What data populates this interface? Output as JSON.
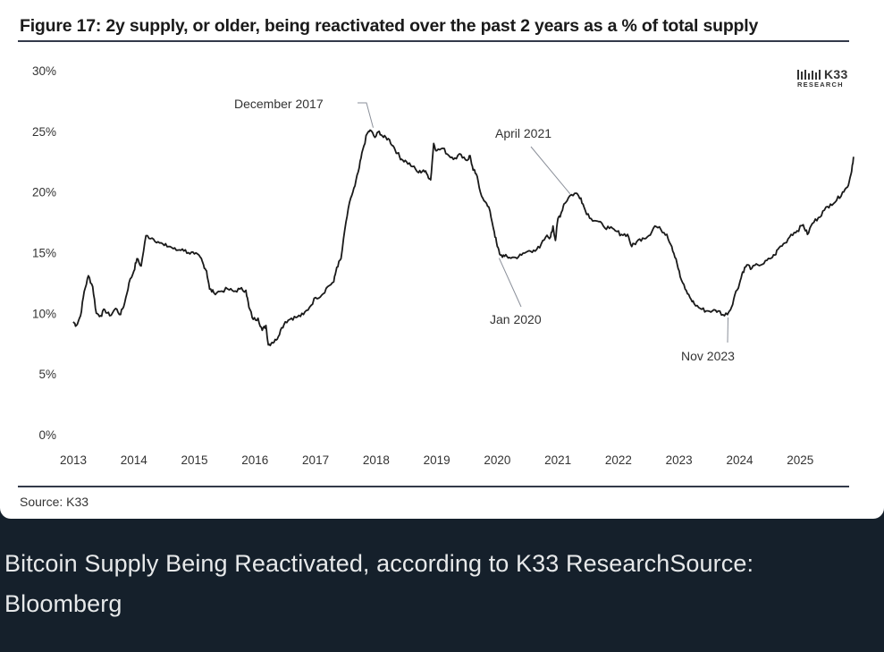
{
  "card": {
    "source": "Source: K33",
    "logo": {
      "name": "K33",
      "subtitle": "RESEARCH"
    }
  },
  "caption": "Bitcoin Supply Being Reactivated, according to K33 ResearchSource: Bloomberg",
  "colors": {
    "line": "#1a1a1a",
    "page_bg": "#15202b",
    "card_bg": "#ffffff",
    "caption_text": "#e7e9ea"
  },
  "chart_data": {
    "type": "line",
    "title": "Figure 17: 2y supply, or older, being reactivated over the past 2 years as a % of total supply",
    "xlabel": "",
    "ylabel": "",
    "xlim": [
      2013.0,
      2026.0
    ],
    "ylim": [
      0,
      30
    ],
    "x_ticks": [
      2013,
      2014,
      2015,
      2016,
      2017,
      2018,
      2019,
      2020,
      2021,
      2022,
      2023,
      2024,
      2025
    ],
    "y_ticks": [
      {
        "value": 0,
        "label": "0%"
      },
      {
        "value": 5,
        "label": "5%"
      },
      {
        "value": 10,
        "label": "10%"
      },
      {
        "value": 15,
        "label": "15%"
      },
      {
        "value": 20,
        "label": "20%"
      },
      {
        "value": 25,
        "label": "25%"
      },
      {
        "value": 30,
        "label": "30%"
      }
    ],
    "grid": false,
    "series": [
      {
        "name": "2y+ supply reactivated (% of total supply)",
        "points": [
          [
            2013.0,
            9.3
          ],
          [
            2013.05,
            9.0
          ],
          [
            2013.12,
            9.8
          ],
          [
            2013.18,
            11.8
          ],
          [
            2013.25,
            13.1
          ],
          [
            2013.32,
            12.2
          ],
          [
            2013.38,
            10.0
          ],
          [
            2013.45,
            9.8
          ],
          [
            2013.52,
            10.3
          ],
          [
            2013.6,
            9.8
          ],
          [
            2013.7,
            10.4
          ],
          [
            2013.78,
            9.9
          ],
          [
            2013.85,
            10.9
          ],
          [
            2013.92,
            12.5
          ],
          [
            2014.0,
            13.5
          ],
          [
            2014.05,
            14.5
          ],
          [
            2014.12,
            13.9
          ],
          [
            2014.2,
            16.4
          ],
          [
            2014.3,
            16.2
          ],
          [
            2014.4,
            15.9
          ],
          [
            2014.5,
            15.6
          ],
          [
            2014.6,
            15.5
          ],
          [
            2014.7,
            15.2
          ],
          [
            2014.8,
            15.3
          ],
          [
            2014.9,
            15.0
          ],
          [
            2015.0,
            14.9
          ],
          [
            2015.1,
            14.6
          ],
          [
            2015.15,
            14.0
          ],
          [
            2015.2,
            13.5
          ],
          [
            2015.25,
            12.0
          ],
          [
            2015.32,
            11.7
          ],
          [
            2015.42,
            11.8
          ],
          [
            2015.55,
            12.0
          ],
          [
            2015.65,
            11.8
          ],
          [
            2015.75,
            12.0
          ],
          [
            2015.85,
            11.9
          ],
          [
            2015.9,
            10.5
          ],
          [
            2015.97,
            9.5
          ],
          [
            2016.05,
            9.6
          ],
          [
            2016.12,
            8.6
          ],
          [
            2016.18,
            9.0
          ],
          [
            2016.22,
            7.4
          ],
          [
            2016.28,
            7.6
          ],
          [
            2016.35,
            7.8
          ],
          [
            2016.42,
            8.6
          ],
          [
            2016.5,
            9.3
          ],
          [
            2016.6,
            9.6
          ],
          [
            2016.7,
            9.7
          ],
          [
            2016.8,
            9.9
          ],
          [
            2016.9,
            10.5
          ],
          [
            2017.0,
            11.3
          ],
          [
            2017.1,
            11.5
          ],
          [
            2017.2,
            12.2
          ],
          [
            2017.3,
            12.6
          ],
          [
            2017.35,
            13.8
          ],
          [
            2017.42,
            14.5
          ],
          [
            2017.5,
            17.5
          ],
          [
            2017.58,
            19.5
          ],
          [
            2017.65,
            20.5
          ],
          [
            2017.72,
            22.0
          ],
          [
            2017.78,
            23.5
          ],
          [
            2017.85,
            24.8
          ],
          [
            2017.9,
            25.1
          ],
          [
            2017.98,
            24.5
          ],
          [
            2018.05,
            25.0
          ],
          [
            2018.12,
            24.5
          ],
          [
            2018.2,
            24.4
          ],
          [
            2018.28,
            23.8
          ],
          [
            2018.35,
            23.2
          ],
          [
            2018.42,
            22.7
          ],
          [
            2018.5,
            22.5
          ],
          [
            2018.6,
            22.1
          ],
          [
            2018.7,
            21.6
          ],
          [
            2018.78,
            21.8
          ],
          [
            2018.85,
            21.4
          ],
          [
            2018.9,
            21.0
          ],
          [
            2018.95,
            24.0
          ],
          [
            2019.0,
            23.4
          ],
          [
            2019.1,
            23.6
          ],
          [
            2019.2,
            23.0
          ],
          [
            2019.3,
            22.8
          ],
          [
            2019.4,
            23.1
          ],
          [
            2019.5,
            22.6
          ],
          [
            2019.55,
            23.0
          ],
          [
            2019.6,
            21.8
          ],
          [
            2019.65,
            21.5
          ],
          [
            2019.72,
            20.0
          ],
          [
            2019.8,
            19.2
          ],
          [
            2019.88,
            18.4
          ],
          [
            2019.95,
            16.7
          ],
          [
            2020.0,
            15.5
          ],
          [
            2020.05,
            14.8
          ],
          [
            2020.12,
            14.7
          ],
          [
            2020.2,
            14.6
          ],
          [
            2020.3,
            14.6
          ],
          [
            2020.4,
            14.8
          ],
          [
            2020.5,
            15.1
          ],
          [
            2020.6,
            15.2
          ],
          [
            2020.7,
            15.4
          ],
          [
            2020.8,
            16.3
          ],
          [
            2020.88,
            16.3
          ],
          [
            2020.92,
            17.2
          ],
          [
            2020.96,
            16.0
          ],
          [
            2021.0,
            17.8
          ],
          [
            2021.05,
            18.2
          ],
          [
            2021.1,
            19.0
          ],
          [
            2021.2,
            19.7
          ],
          [
            2021.3,
            19.9
          ],
          [
            2021.38,
            19.5
          ],
          [
            2021.45,
            18.5
          ],
          [
            2021.55,
            17.8
          ],
          [
            2021.65,
            17.6
          ],
          [
            2021.75,
            17.2
          ],
          [
            2021.85,
            17.0
          ],
          [
            2021.95,
            16.8
          ],
          [
            2022.05,
            16.5
          ],
          [
            2022.15,
            16.5
          ],
          [
            2022.22,
            15.5
          ],
          [
            2022.3,
            15.9
          ],
          [
            2022.4,
            16.2
          ],
          [
            2022.5,
            16.4
          ],
          [
            2022.6,
            17.2
          ],
          [
            2022.7,
            16.9
          ],
          [
            2022.8,
            16.5
          ],
          [
            2022.88,
            15.5
          ],
          [
            2022.95,
            14.5
          ],
          [
            2023.02,
            13.0
          ],
          [
            2023.1,
            12.0
          ],
          [
            2023.18,
            11.3
          ],
          [
            2023.25,
            10.8
          ],
          [
            2023.35,
            10.4
          ],
          [
            2023.45,
            10.2
          ],
          [
            2023.55,
            10.2
          ],
          [
            2023.65,
            10.2
          ],
          [
            2023.75,
            9.8
          ],
          [
            2023.85,
            10.3
          ],
          [
            2023.92,
            11.5
          ],
          [
            2024.0,
            12.5
          ],
          [
            2024.05,
            13.4
          ],
          [
            2024.12,
            14.0
          ],
          [
            2024.2,
            13.7
          ],
          [
            2024.3,
            14.0
          ],
          [
            2024.4,
            14.1
          ],
          [
            2024.5,
            14.5
          ],
          [
            2024.58,
            14.8
          ],
          [
            2024.65,
            15.4
          ],
          [
            2024.75,
            15.8
          ],
          [
            2024.85,
            16.5
          ],
          [
            2024.95,
            16.8
          ],
          [
            2025.05,
            17.3
          ],
          [
            2025.12,
            16.5
          ],
          [
            2025.2,
            17.4
          ],
          [
            2025.3,
            17.9
          ],
          [
            2025.4,
            18.5
          ],
          [
            2025.5,
            19.0
          ],
          [
            2025.6,
            19.3
          ],
          [
            2025.7,
            20.0
          ],
          [
            2025.78,
            20.4
          ],
          [
            2025.84,
            21.5
          ],
          [
            2025.88,
            22.9
          ]
        ]
      }
    ],
    "annotations": [
      {
        "label": "December 2017",
        "x": 2017.95,
        "y": 25.0
      },
      {
        "label": "April 2021",
        "x": 2021.2,
        "y": 19.7
      },
      {
        "label": "Jan 2020",
        "x": 2020.0,
        "y": 14.7
      },
      {
        "label": "Nov 2023",
        "x": 2023.75,
        "y": 9.8
      }
    ],
    "legend": "none"
  }
}
